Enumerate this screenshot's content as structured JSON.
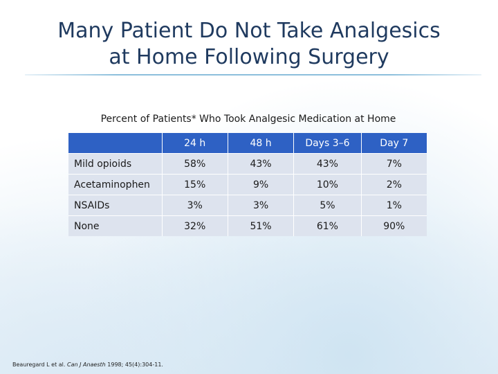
{
  "title": {
    "line1": "Many Patient Do Not Take Analgesics",
    "line2": "at Home Following Surgery"
  },
  "subtitle": "Percent of Patients* Who Took Analgesic Medication at Home",
  "table": {
    "columns": [
      "",
      "24 h",
      "48 h",
      "Days 3–6",
      "Day 7"
    ],
    "rows": [
      {
        "label": "Mild opioids",
        "values": [
          "58%",
          "43%",
          "43%",
          "7%"
        ]
      },
      {
        "label": "Acetaminophen",
        "values": [
          "15%",
          "9%",
          "10%",
          "2%"
        ]
      },
      {
        "label": "NSAIDs",
        "values": [
          "3%",
          "3%",
          "5%",
          "1%"
        ]
      },
      {
        "label": "None",
        "values": [
          "32%",
          "51%",
          "61%",
          "90%"
        ]
      }
    ]
  },
  "citation": {
    "authors": "Beauregard L et al.",
    "journal": "Can J Anaesth",
    "details": "1998; 45(4):304-11."
  },
  "colors": {
    "title": "#1f3a5f",
    "header_bg": "#2e61c4",
    "row_bg": "#dde3ee"
  }
}
